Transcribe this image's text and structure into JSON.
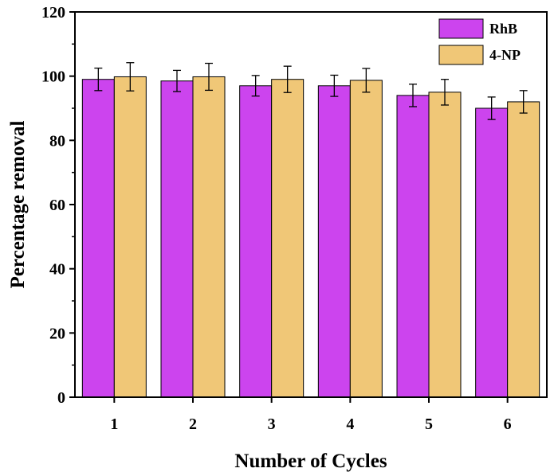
{
  "chart_data": {
    "type": "bar",
    "title": "",
    "xlabel": "Number of Cycles",
    "ylabel": "Percentage removal",
    "categories": [
      "1",
      "2",
      "3",
      "4",
      "5",
      "6"
    ],
    "ylim": [
      0,
      120
    ],
    "yticks": [
      0,
      20,
      40,
      60,
      80,
      100,
      120
    ],
    "ytick_labels": [
      "0",
      "20",
      "40",
      "60",
      "80",
      "100",
      "120"
    ],
    "grid": false,
    "legend_position": "top-right",
    "series": [
      {
        "name": "RhB",
        "color": "#cc44ee",
        "values": [
          99,
          98.5,
          97,
          97,
          94,
          90
        ],
        "errors": [
          3.5,
          3.3,
          3.2,
          3.3,
          3.5,
          3.5
        ]
      },
      {
        "name": "4-NP",
        "color": "#f0c777",
        "values": [
          99.8,
          99.8,
          99,
          98.7,
          95,
          92
        ],
        "errors": [
          4.4,
          4.2,
          4.1,
          3.7,
          4.0,
          3.5
        ]
      }
    ]
  }
}
